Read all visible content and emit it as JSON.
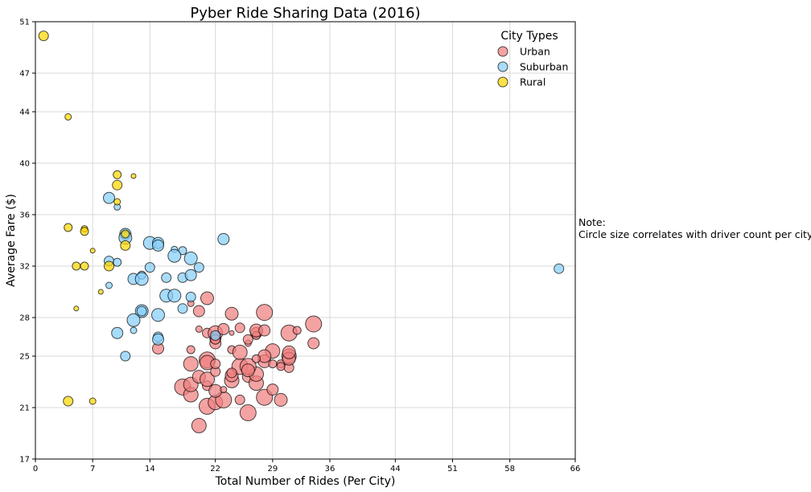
{
  "note": {
    "line1": "Note:",
    "line2": "Circle size correlates with driver count per city"
  },
  "chart_data": {
    "type": "scatter",
    "title": "Pyber Ride Sharing Data (2016)",
    "xlabel": "Total Number of Rides (Per City)",
    "ylabel": "Average Fare ($)",
    "xlim": [
      0,
      66
    ],
    "ylim": [
      17,
      51
    ],
    "xticks": [
      0,
      7,
      14,
      22,
      29,
      36,
      44,
      51,
      58,
      66
    ],
    "yticks": [
      17,
      21,
      25,
      28,
      32,
      36,
      40,
      44,
      47,
      51
    ],
    "grid": true,
    "legend": {
      "title": "City Types",
      "placement": "top-right"
    },
    "series": [
      {
        "name": "Urban",
        "color": "#F08080",
        "points": [
          [
            20,
            19.6,
            9
          ],
          [
            21,
            21.1,
            10
          ],
          [
            22,
            21.4,
            9
          ],
          [
            23,
            21.6,
            10
          ],
          [
            25,
            21.6,
            6
          ],
          [
            26,
            20.6,
            10
          ],
          [
            28,
            21.8,
            10
          ],
          [
            30,
            21.6,
            8
          ],
          [
            29,
            22.4,
            7
          ],
          [
            18,
            22.6,
            10
          ],
          [
            19,
            22.0,
            9
          ],
          [
            19,
            22.8,
            9
          ],
          [
            21,
            22.7,
            6
          ],
          [
            22,
            22.3,
            8
          ],
          [
            23,
            22.4,
            4
          ],
          [
            24,
            23.1,
            9
          ],
          [
            24,
            23.5,
            8
          ],
          [
            26,
            23.4,
            7
          ],
          [
            27,
            22.9,
            9
          ],
          [
            27,
            23.6,
            9
          ],
          [
            20,
            23.4,
            8
          ],
          [
            21,
            23.2,
            9
          ],
          [
            22,
            23.8,
            6
          ],
          [
            25,
            24.2,
            10
          ],
          [
            26,
            24.2,
            10
          ],
          [
            26,
            23.9,
            8
          ],
          [
            28,
            24.6,
            8
          ],
          [
            29,
            24.4,
            5
          ],
          [
            30,
            24.4,
            5
          ],
          [
            31,
            24.1,
            6
          ],
          [
            31,
            25.0,
            9
          ],
          [
            31,
            24.8,
            8
          ],
          [
            31,
            25.3,
            8
          ],
          [
            19,
            24.4,
            9
          ],
          [
            21,
            24.7,
            10
          ],
          [
            21,
            24.5,
            9
          ],
          [
            22,
            24.4,
            6
          ],
          [
            15,
            25.6,
            7
          ],
          [
            19,
            25.5,
            5
          ],
          [
            24,
            25.5,
            5
          ],
          [
            25,
            25.3,
            9
          ],
          [
            26,
            26.0,
            4
          ],
          [
            29,
            25.4,
            9
          ],
          [
            28,
            25.0,
            8
          ],
          [
            34,
            26.0,
            7
          ],
          [
            22,
            26.0,
            7
          ],
          [
            22,
            26.4,
            7
          ],
          [
            21,
            26.8,
            6
          ],
          [
            22,
            26.8,
            9
          ],
          [
            23,
            27.1,
            7
          ],
          [
            24,
            26.8,
            3
          ],
          [
            25,
            27.2,
            6
          ],
          [
            27,
            26.8,
            7
          ],
          [
            27,
            26.6,
            5
          ],
          [
            27,
            27.0,
            8
          ],
          [
            28,
            27.0,
            7
          ],
          [
            31,
            26.8,
            10
          ],
          [
            32,
            27.0,
            5
          ],
          [
            34,
            27.5,
            10
          ],
          [
            20,
            27.1,
            4
          ],
          [
            20,
            28.5,
            7
          ],
          [
            24,
            28.3,
            8
          ],
          [
            28,
            28.4,
            10
          ],
          [
            19,
            29.1,
            4
          ],
          [
            22,
            26.3,
            6
          ],
          [
            26,
            26.3,
            6
          ],
          [
            21,
            29.5,
            8
          ],
          [
            30,
            24.2,
            5
          ],
          [
            27,
            24.8,
            5
          ],
          [
            24,
            23.7,
            6
          ]
        ]
      },
      {
        "name": "Suburban",
        "color": "#87CEFA",
        "points": [
          [
            64,
            31.8,
            6
          ],
          [
            9,
            37.3,
            7
          ],
          [
            10,
            36.6,
            4
          ],
          [
            11,
            34.5,
            7
          ],
          [
            11,
            34.2,
            8
          ],
          [
            14,
            33.8,
            8
          ],
          [
            15,
            33.8,
            7
          ],
          [
            15,
            33.6,
            7
          ],
          [
            17,
            33.3,
            4
          ],
          [
            18,
            33.2,
            5
          ],
          [
            17,
            32.8,
            8
          ],
          [
            19,
            32.6,
            8
          ],
          [
            23,
            34.1,
            7
          ],
          [
            9,
            32.4,
            6
          ],
          [
            10,
            32.3,
            5
          ],
          [
            14,
            31.9,
            6
          ],
          [
            20,
            31.9,
            6
          ],
          [
            12,
            31.0,
            7
          ],
          [
            13,
            31.3,
            5
          ],
          [
            13,
            31.0,
            8
          ],
          [
            16,
            31.1,
            6
          ],
          [
            18,
            31.1,
            6
          ],
          [
            19,
            31.3,
            7
          ],
          [
            9,
            30.5,
            4
          ],
          [
            16,
            29.7,
            8
          ],
          [
            17,
            29.7,
            8
          ],
          [
            19,
            29.6,
            6
          ],
          [
            13,
            28.5,
            8
          ],
          [
            13,
            28.5,
            6
          ],
          [
            15,
            28.2,
            8
          ],
          [
            18,
            28.7,
            6
          ],
          [
            12,
            27.8,
            8
          ],
          [
            10,
            26.8,
            7
          ],
          [
            12,
            27.0,
            4
          ],
          [
            15,
            26.5,
            6
          ],
          [
            15,
            26.3,
            7
          ],
          [
            22,
            26.6,
            6
          ],
          [
            11,
            25.0,
            6
          ]
        ]
      },
      {
        "name": "Rural",
        "color": "#FFD700",
        "points": [
          [
            1,
            49.9,
            6
          ],
          [
            4,
            43.6,
            4
          ],
          [
            10,
            39.1,
            5
          ],
          [
            12,
            39.0,
            3
          ],
          [
            10,
            38.3,
            6
          ],
          [
            10,
            37.0,
            4
          ],
          [
            4,
            35.0,
            5
          ],
          [
            6,
            34.9,
            4
          ],
          [
            6,
            34.7,
            5
          ],
          [
            11,
            34.5,
            5
          ],
          [
            11,
            33.6,
            6
          ],
          [
            7,
            33.2,
            3
          ],
          [
            5,
            32.0,
            5
          ],
          [
            6,
            32.0,
            5
          ],
          [
            9,
            32.0,
            6
          ],
          [
            8,
            30.0,
            3
          ],
          [
            5,
            28.7,
            3
          ],
          [
            4,
            21.5,
            6
          ],
          [
            7,
            21.5,
            4
          ]
        ]
      }
    ]
  }
}
